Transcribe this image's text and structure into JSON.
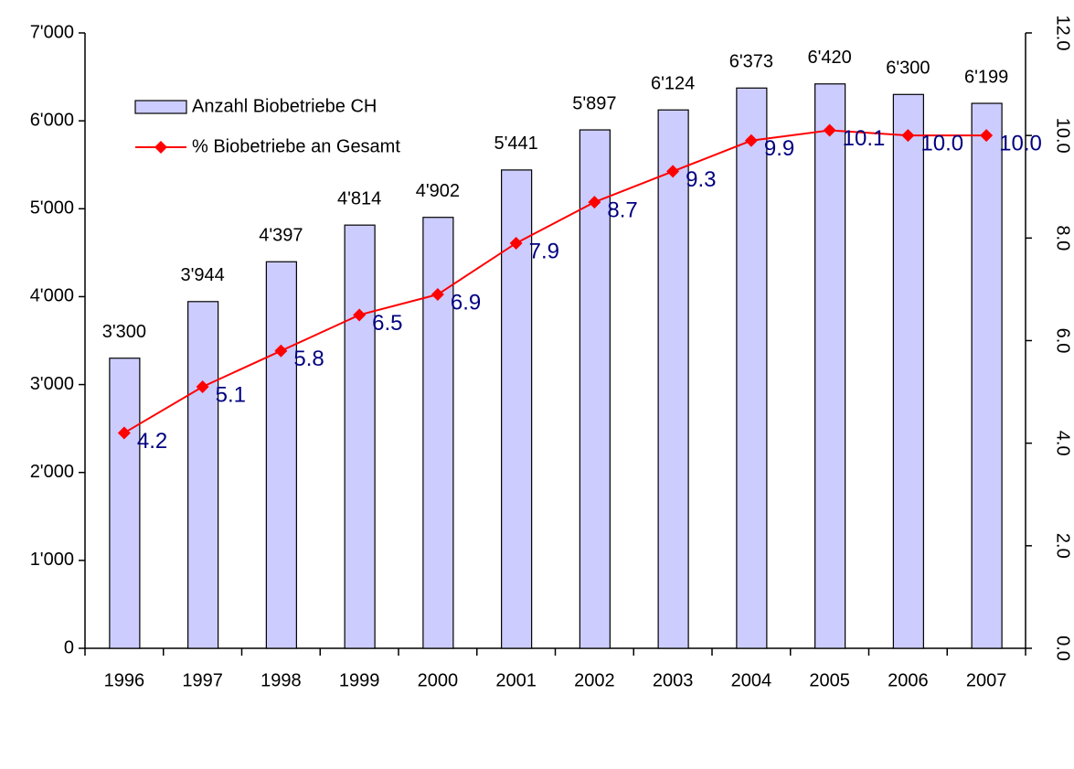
{
  "chart_data": {
    "type": "bar-line",
    "categories": [
      "1996",
      "1997",
      "1998",
      "1999",
      "2000",
      "2001",
      "2002",
      "2003",
      "2004",
      "2005",
      "2006",
      "2007"
    ],
    "series": [
      {
        "name": "Anzahl Biobetriebe CH",
        "type": "bar",
        "color": "#ccccff",
        "values": [
          3300,
          3944,
          4397,
          4814,
          4902,
          5441,
          5897,
          6124,
          6373,
          6420,
          6300,
          6199
        ],
        "value_labels": [
          "3'300",
          "3'944",
          "4'397",
          "4'814",
          "4'902",
          "5'441",
          "5'897",
          "6'124",
          "6'373",
          "6'420",
          "6'300",
          "6'199"
        ]
      },
      {
        "name": "% Biobetriebe an Gesamt",
        "type": "line",
        "axis": "y2",
        "color": "#ff0000",
        "values": [
          4.2,
          5.1,
          5.8,
          6.5,
          6.9,
          7.9,
          8.7,
          9.3,
          9.9,
          10.1,
          10.0,
          10.0
        ],
        "value_labels": [
          "4.2",
          "5.1",
          "5.8",
          "6.5",
          "6.9",
          "7.9",
          "8.7",
          "9.3",
          "9.9",
          "10.1",
          "10.0",
          "10.0"
        ]
      }
    ],
    "ylim": [
      0,
      7000
    ],
    "yticks": [
      0,
      {
        "value": 1000,
        "label": "1'000"
      },
      {
        "value": 2000,
        "label": "2'000"
      },
      {
        "value": 3000,
        "label": "3'000"
      },
      {
        "value": 4000,
        "label": "4'000"
      },
      {
        "value": 5000,
        "label": "5'000"
      },
      {
        "value": 6000,
        "label": "6'000"
      },
      {
        "value": 7000,
        "label": "7'000"
      }
    ],
    "y2lim": [
      0,
      12
    ],
    "y2ticks": [
      {
        "value": 0,
        "label": "0.0"
      },
      {
        "value": 2,
        "label": "2.0"
      },
      {
        "value": 4,
        "label": "4.0"
      },
      {
        "value": 6,
        "label": "6.0"
      },
      {
        "value": 8,
        "label": "8.0"
      },
      {
        "value": 10,
        "label": "10.0"
      },
      {
        "value": 12,
        "label": "12.0"
      }
    ],
    "legend": "upper left"
  }
}
